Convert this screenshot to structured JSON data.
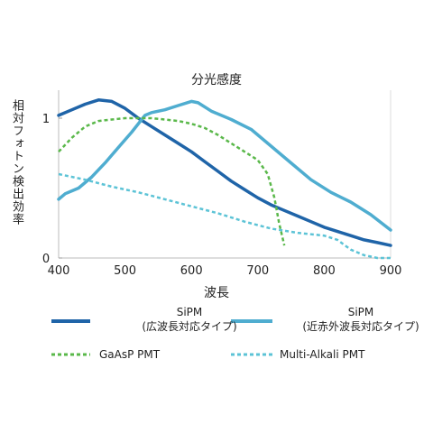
{
  "chart_data": {
    "type": "line",
    "title": "分光感度",
    "xlabel": "波長",
    "ylabel": "相対フォトン検出効率",
    "xlim": [
      400,
      900
    ],
    "ylim": [
      0,
      1.2
    ],
    "xticks": [
      "400",
      "500",
      "600",
      "700",
      "800",
      "900"
    ],
    "yticks": [
      {
        "label": "0",
        "value": 0
      },
      {
        "label": "1",
        "value": 1
      }
    ],
    "series": [
      {
        "name": "SiPM\n(広波長対応タイプ)",
        "color": "#1f64a8",
        "style": "solid",
        "x": [
          400,
          420,
          440,
          460,
          480,
          500,
          520,
          540,
          560,
          580,
          600,
          620,
          640,
          660,
          680,
          700,
          720,
          740,
          760,
          780,
          800,
          820,
          840,
          860,
          880,
          900
        ],
        "y": [
          1.02,
          1.06,
          1.1,
          1.13,
          1.12,
          1.07,
          1.0,
          0.94,
          0.88,
          0.82,
          0.76,
          0.69,
          0.62,
          0.55,
          0.49,
          0.43,
          0.38,
          0.34,
          0.3,
          0.26,
          0.22,
          0.19,
          0.16,
          0.13,
          0.11,
          0.09
        ]
      },
      {
        "name": "SiPM\n(近赤外波長対応タイプ)",
        "color": "#4fadd0",
        "style": "solid",
        "x": [
          400,
          410,
          420,
          430,
          450,
          470,
          490,
          510,
          530,
          540,
          560,
          580,
          600,
          610,
          630,
          660,
          690,
          720,
          750,
          780,
          810,
          840,
          870,
          900
        ],
        "y": [
          0.42,
          0.46,
          0.48,
          0.5,
          0.58,
          0.68,
          0.79,
          0.9,
          1.02,
          1.04,
          1.06,
          1.09,
          1.12,
          1.11,
          1.05,
          0.99,
          0.92,
          0.8,
          0.68,
          0.56,
          0.47,
          0.4,
          0.31,
          0.2
        ]
      },
      {
        "name": "GaAsP PMT",
        "color": "#5ab84a",
        "style": "dotted",
        "x": [
          400,
          420,
          440,
          460,
          480,
          500,
          520,
          540,
          560,
          580,
          600,
          620,
          640,
          660,
          680,
          700,
          715,
          725,
          732,
          740
        ],
        "y": [
          0.76,
          0.86,
          0.94,
          0.98,
          0.99,
          1.0,
          1.0,
          1.0,
          0.99,
          0.98,
          0.96,
          0.93,
          0.88,
          0.82,
          0.76,
          0.7,
          0.6,
          0.43,
          0.25,
          0.09
        ]
      },
      {
        "name": "Multi-Alkali PMT",
        "color": "#5cc3d6",
        "style": "dotted",
        "x": [
          400,
          440,
          480,
          520,
          560,
          600,
          640,
          680,
          720,
          760,
          800,
          820,
          840,
          860,
          870,
          880,
          900
        ],
        "y": [
          0.6,
          0.56,
          0.51,
          0.47,
          0.42,
          0.37,
          0.32,
          0.26,
          0.21,
          0.18,
          0.16,
          0.13,
          0.06,
          0.02,
          0.01,
          0.0,
          0.0
        ]
      }
    ],
    "grid": false,
    "legend_position": "bottom"
  }
}
